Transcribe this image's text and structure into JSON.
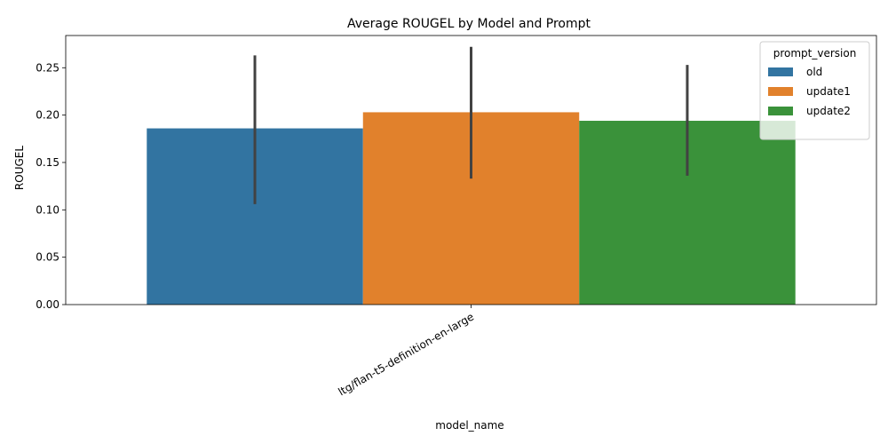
{
  "chart_data": {
    "type": "bar",
    "title": "Average ROUGEL by Model and Prompt",
    "xlabel": "model_name",
    "ylabel": "ROUGEL",
    "categories": [
      "ltg/flan-t5-definition-en-large"
    ],
    "series": [
      {
        "name": "old",
        "values": [
          0.186
        ],
        "ci": [
          [
            0.106,
            0.263
          ]
        ],
        "color": "#3274a1"
      },
      {
        "name": "update1",
        "values": [
          0.203
        ],
        "ci": [
          [
            0.133,
            0.272
          ]
        ],
        "color": "#e1812c"
      },
      {
        "name": "update2",
        "values": [
          0.194
        ],
        "ci": [
          [
            0.136,
            0.253
          ]
        ],
        "color": "#3a923a"
      }
    ],
    "ylim": [
      0,
      0.284
    ],
    "yticks": [
      "0.00",
      "0.05",
      "0.10",
      "0.15",
      "0.20",
      "0.25"
    ],
    "grid": false,
    "legend": {
      "title": "prompt_version",
      "placement": "upper right"
    }
  }
}
